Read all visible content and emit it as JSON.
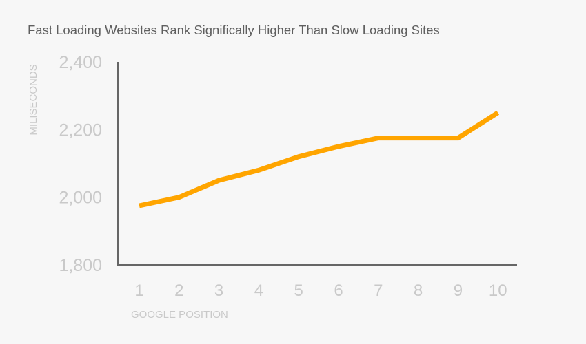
{
  "chart_data": {
    "type": "line",
    "title": "Fast Loading Websites Rank Significally Higher Than Slow Loading Sites",
    "xlabel": "GOOGLE POSITION",
    "ylabel": "MILISECONDS",
    "categories": [
      "1",
      "2",
      "3",
      "4",
      "5",
      "6",
      "7",
      "8",
      "9",
      "10"
    ],
    "values": [
      1975,
      2000,
      2050,
      2080,
      2120,
      2150,
      2175,
      2175,
      2175,
      2250
    ],
    "ylim": [
      1800,
      2400
    ],
    "yticks": [
      1800,
      2000,
      2200,
      2400
    ],
    "ytick_labels": [
      "1,800",
      "2,000",
      "2,200",
      "2,400"
    ],
    "grid": false,
    "line_color": "#ffa500"
  }
}
